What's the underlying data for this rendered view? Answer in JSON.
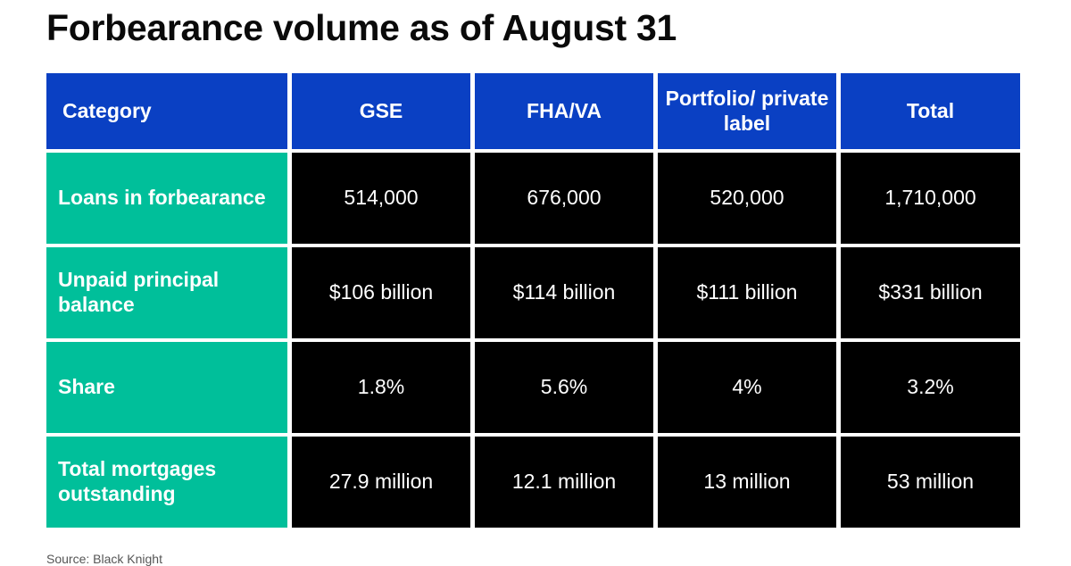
{
  "title": "Forbearance volume as of August 31",
  "colors": {
    "header_bg": "#0a40c3",
    "row_label_bg": "#00bf9a",
    "cell_bg": "#000000",
    "text_light": "#ffffff"
  },
  "chart_data": {
    "type": "table",
    "title": "Forbearance volume as of August 31",
    "columns": [
      "Category",
      "GSE",
      "FHA/VA",
      "Portfolio/ private label",
      "Total"
    ],
    "rows": [
      {
        "label": "Loans in forbearance",
        "values": [
          "514,000",
          "676,000",
          "520,000",
          "1,710,000"
        ]
      },
      {
        "label": "Unpaid principal balance",
        "values": [
          "$106 billion",
          "$114 billion",
          "$111 billion",
          "$331 billion"
        ]
      },
      {
        "label": "Share",
        "values": [
          "1.8%",
          "5.6%",
          "4%",
          "3.2%"
        ]
      },
      {
        "label": "Total mortgages outstanding",
        "values": [
          "27.9 million",
          "12.1 million",
          "13 million",
          "53 million"
        ]
      }
    ],
    "source": "Source: Black Knight"
  }
}
